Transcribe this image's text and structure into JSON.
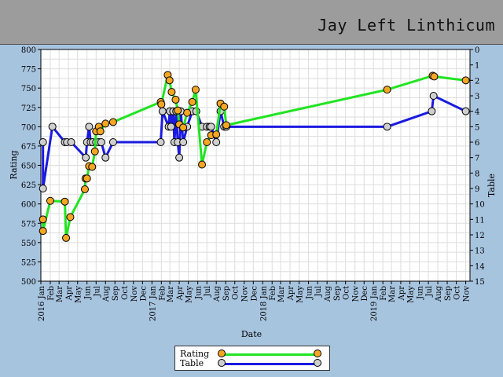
{
  "header": {
    "player_name": "Jay Left Linthicum"
  },
  "colors": {
    "rating_line": "#22e422",
    "rating_marker": "#f5a623",
    "table_line": "#1a1ae0",
    "table_marker": "#cfcfcf"
  },
  "chart_data": {
    "type": "line",
    "xlabel": "Date",
    "ylabel_left": "Rating",
    "ylabel_right": "Table",
    "ylim_left": [
      500,
      800
    ],
    "ylim_right": [
      15,
      0
    ],
    "yticks_left": [
      "500",
      "525",
      "550",
      "575",
      "600",
      "625",
      "650",
      "675",
      "700",
      "725",
      "750",
      "775",
      "800"
    ],
    "yticks_right": [
      "0",
      "1",
      "2",
      "3",
      "4",
      "5",
      "6",
      "7",
      "8",
      "9",
      "10",
      "11",
      "12",
      "13",
      "14",
      "15"
    ],
    "xlim": [
      "2016-01-01",
      "2019-11-15"
    ],
    "xticks": [
      {
        "date": "2016-01-01",
        "label": "2016 Jan"
      },
      {
        "date": "2016-02-01",
        "label": "Feb"
      },
      {
        "date": "2016-03-01",
        "label": "Mar"
      },
      {
        "date": "2016-04-01",
        "label": "Apr"
      },
      {
        "date": "2016-05-01",
        "label": "May"
      },
      {
        "date": "2016-06-01",
        "label": "Jun"
      },
      {
        "date": "2016-07-01",
        "label": "Jul"
      },
      {
        "date": "2016-08-01",
        "label": "Aug"
      },
      {
        "date": "2016-09-01",
        "label": "Sep"
      },
      {
        "date": "2016-10-01",
        "label": "Oct"
      },
      {
        "date": "2016-11-01",
        "label": "Nov"
      },
      {
        "date": "2016-12-01",
        "label": "Dec"
      },
      {
        "date": "2017-01-01",
        "label": "2017 Jan"
      },
      {
        "date": "2017-02-01",
        "label": "Feb"
      },
      {
        "date": "2017-03-01",
        "label": "Mar"
      },
      {
        "date": "2017-04-01",
        "label": "Apr"
      },
      {
        "date": "2017-05-01",
        "label": "May"
      },
      {
        "date": "2017-06-01",
        "label": "Jun"
      },
      {
        "date": "2017-07-01",
        "label": "Jul"
      },
      {
        "date": "2017-08-01",
        "label": "Aug"
      },
      {
        "date": "2017-09-01",
        "label": "Sep"
      },
      {
        "date": "2017-10-01",
        "label": "Oct"
      },
      {
        "date": "2017-11-01",
        "label": "Nov"
      },
      {
        "date": "2017-12-01",
        "label": "Dec"
      },
      {
        "date": "2018-01-01",
        "label": "2018 Jan"
      },
      {
        "date": "2018-02-01",
        "label": "Feb"
      },
      {
        "date": "2018-03-01",
        "label": "Mar"
      },
      {
        "date": "2018-04-01",
        "label": "Apr"
      },
      {
        "date": "2018-05-01",
        "label": "May"
      },
      {
        "date": "2018-06-01",
        "label": "Jun"
      },
      {
        "date": "2018-07-01",
        "label": "Jul"
      },
      {
        "date": "2018-08-01",
        "label": "Aug"
      },
      {
        "date": "2018-09-01",
        "label": "Sep"
      },
      {
        "date": "2018-10-01",
        "label": "Oct"
      },
      {
        "date": "2018-11-01",
        "label": "Nov"
      },
      {
        "date": "2018-12-01",
        "label": "Dec"
      },
      {
        "date": "2019-01-01",
        "label": "2019 Jan"
      },
      {
        "date": "2019-02-01",
        "label": "Feb"
      },
      {
        "date": "2019-03-01",
        "label": "Mar"
      },
      {
        "date": "2019-04-01",
        "label": "Apr"
      },
      {
        "date": "2019-05-01",
        "label": "May"
      },
      {
        "date": "2019-06-01",
        "label": "Jun"
      },
      {
        "date": "2019-07-01",
        "label": "Jul"
      },
      {
        "date": "2019-08-01",
        "label": "Aug"
      },
      {
        "date": "2019-09-01",
        "label": "Sep"
      },
      {
        "date": "2019-10-01",
        "label": "Oct"
      },
      {
        "date": "2019-11-01",
        "label": "Nov"
      }
    ],
    "grid": true,
    "legend": "bottom-center",
    "series": [
      {
        "name": "Rating",
        "axis": "left",
        "points": [
          {
            "x": "2016-01-08",
            "y": 580
          },
          {
            "x": "2016-01-08",
            "y": 565
          },
          {
            "x": "2016-02-01",
            "y": 604
          },
          {
            "x": "2016-03-20",
            "y": 603
          },
          {
            "x": "2016-03-24",
            "y": 556
          },
          {
            "x": "2016-04-07",
            "y": 583
          },
          {
            "x": "2016-05-25",
            "y": 619
          },
          {
            "x": "2016-05-27",
            "y": 633
          },
          {
            "x": "2016-06-01",
            "y": 633
          },
          {
            "x": "2016-06-08",
            "y": 649
          },
          {
            "x": "2016-06-18",
            "y": 648
          },
          {
            "x": "2016-06-27",
            "y": 668
          },
          {
            "x": "2016-07-01",
            "y": 694
          },
          {
            "x": "2016-07-10",
            "y": 700
          },
          {
            "x": "2016-07-15",
            "y": 694
          },
          {
            "x": "2016-08-01",
            "y": 704
          },
          {
            "x": "2016-08-26",
            "y": 706
          },
          {
            "x": "2017-01-30",
            "y": 732
          },
          {
            "x": "2017-02-01",
            "y": 729
          },
          {
            "x": "2017-02-22",
            "y": 767
          },
          {
            "x": "2017-02-28",
            "y": 760
          },
          {
            "x": "2017-03-07",
            "y": 745
          },
          {
            "x": "2017-03-20",
            "y": 735
          },
          {
            "x": "2017-03-27",
            "y": 721
          },
          {
            "x": "2017-04-01",
            "y": 703
          },
          {
            "x": "2017-04-14",
            "y": 699
          },
          {
            "x": "2017-04-27",
            "y": 718
          },
          {
            "x": "2017-05-14",
            "y": 732
          },
          {
            "x": "2017-05-25",
            "y": 748
          },
          {
            "x": "2017-06-15",
            "y": 651
          },
          {
            "x": "2017-07-01",
            "y": 680
          },
          {
            "x": "2017-07-15",
            "y": 689
          },
          {
            "x": "2017-08-01",
            "y": 690
          },
          {
            "x": "2017-08-15",
            "y": 730
          },
          {
            "x": "2017-08-27",
            "y": 726
          },
          {
            "x": "2017-09-03",
            "y": 702
          },
          {
            "x": "2019-02-15",
            "y": 748
          },
          {
            "x": "2019-07-15",
            "y": 766
          },
          {
            "x": "2019-07-20",
            "y": 765
          },
          {
            "x": "2019-11-01",
            "y": 760
          }
        ]
      },
      {
        "name": "Table",
        "axis": "right",
        "points": [
          {
            "x": "2016-01-08",
            "y": 6
          },
          {
            "x": "2016-01-08",
            "y": 9
          },
          {
            "x": "2016-02-08",
            "y": 5
          },
          {
            "x": "2016-03-20",
            "y": 6
          },
          {
            "x": "2016-03-27",
            "y": 6
          },
          {
            "x": "2016-04-10",
            "y": 6
          },
          {
            "x": "2016-05-28",
            "y": 7
          },
          {
            "x": "2016-06-01",
            "y": 6
          },
          {
            "x": "2016-06-08",
            "y": 5
          },
          {
            "x": "2016-06-13",
            "y": 6
          },
          {
            "x": "2016-06-20",
            "y": 6
          },
          {
            "x": "2016-07-01",
            "y": 6
          },
          {
            "x": "2016-07-10",
            "y": 6
          },
          {
            "x": "2016-07-18",
            "y": 6
          },
          {
            "x": "2016-08-01",
            "y": 7
          },
          {
            "x": "2016-08-26",
            "y": 6
          },
          {
            "x": "2017-01-30",
            "y": 6
          },
          {
            "x": "2017-02-05",
            "y": 4
          },
          {
            "x": "2017-02-25",
            "y": 5
          },
          {
            "x": "2017-03-01",
            "y": 4
          },
          {
            "x": "2017-03-05",
            "y": 5
          },
          {
            "x": "2017-03-12",
            "y": 4
          },
          {
            "x": "2017-03-16",
            "y": 6
          },
          {
            "x": "2017-03-22",
            "y": 4
          },
          {
            "x": "2017-03-27",
            "y": 6
          },
          {
            "x": "2017-04-01",
            "y": 7
          },
          {
            "x": "2017-04-06",
            "y": 4
          },
          {
            "x": "2017-04-14",
            "y": 6
          },
          {
            "x": "2017-04-27",
            "y": 5
          },
          {
            "x": "2017-05-14",
            "y": 4
          },
          {
            "x": "2017-05-27",
            "y": 4
          },
          {
            "x": "2017-06-15",
            "y": 5
          },
          {
            "x": "2017-07-01",
            "y": 5
          },
          {
            "x": "2017-07-10",
            "y": 5
          },
          {
            "x": "2017-07-15",
            "y": 5
          },
          {
            "x": "2017-08-01",
            "y": 6
          },
          {
            "x": "2017-08-15",
            "y": 4
          },
          {
            "x": "2017-08-27",
            "y": 5
          },
          {
            "x": "2017-09-03",
            "y": 5
          },
          {
            "x": "2019-02-15",
            "y": 5
          },
          {
            "x": "2019-07-12",
            "y": 4
          },
          {
            "x": "2019-07-18",
            "y": 3
          },
          {
            "x": "2019-11-01",
            "y": 4
          }
        ]
      }
    ]
  }
}
